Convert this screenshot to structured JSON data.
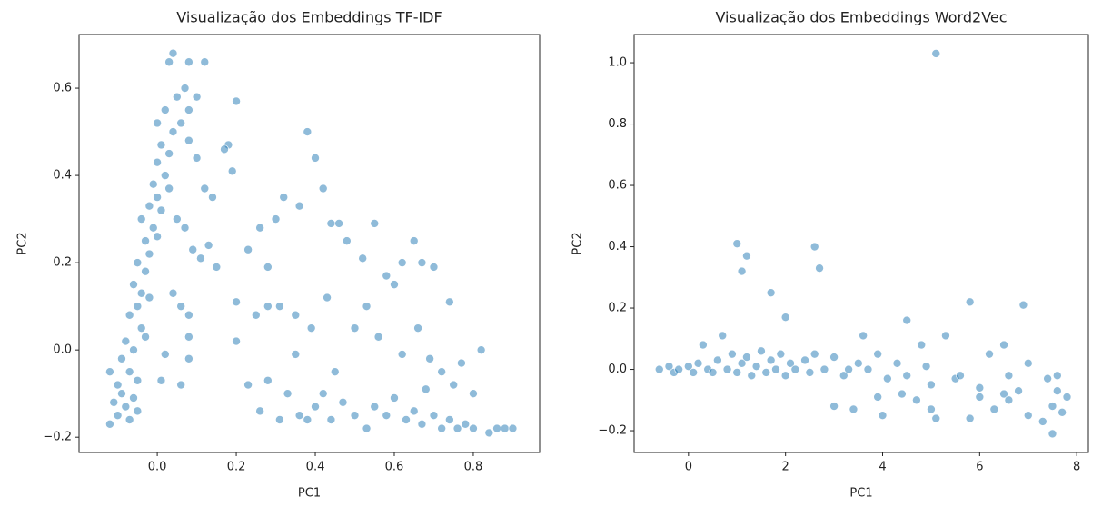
{
  "chart_data": [
    {
      "type": "scatter",
      "title": "Visualização dos Embeddings TF-IDF",
      "x_label": "PC1",
      "y_label": "PC2",
      "color": "#1f77b4",
      "xlim": [
        -0.198,
        0.968
      ],
      "ylim": [
        -0.235,
        0.723
      ],
      "xticks": [
        {
          "value": 0.0,
          "label": "0.0"
        },
        {
          "value": 0.2,
          "label": "0.2"
        },
        {
          "value": 0.4,
          "label": "0.4"
        },
        {
          "value": 0.6,
          "label": "0.6"
        },
        {
          "value": 0.8,
          "label": "0.8"
        }
      ],
      "yticks": [
        {
          "value": -0.2,
          "label": "−0.2"
        },
        {
          "value": 0.0,
          "label": "0.0"
        },
        {
          "value": 0.2,
          "label": "0.2"
        },
        {
          "value": 0.4,
          "label": "0.4"
        },
        {
          "value": 0.6,
          "label": "0.6"
        }
      ],
      "x": [
        -0.12,
        -0.11,
        -0.1,
        -0.09,
        -0.12,
        -0.08,
        -0.07,
        -0.1,
        -0.06,
        -0.09,
        -0.07,
        -0.05,
        -0.08,
        -0.06,
        -0.05,
        -0.04,
        -0.07,
        -0.05,
        -0.03,
        -0.04,
        -0.06,
        -0.03,
        -0.02,
        -0.05,
        -0.02,
        -0.03,
        -0.01,
        -0.04,
        0.0,
        -0.02,
        0.0,
        -0.01,
        0.01,
        0.02,
        0.0,
        0.03,
        0.01,
        0.03,
        0.0,
        0.04,
        0.02,
        0.05,
        0.04,
        0.03,
        0.07,
        0.08,
        0.06,
        0.08,
        0.1,
        0.12,
        0.08,
        0.2,
        0.18,
        0.17,
        0.19,
        0.1,
        0.12,
        0.14,
        0.05,
        0.07,
        0.09,
        0.11,
        0.13,
        0.15,
        0.04,
        0.06,
        0.08,
        0.02,
        0.08,
        0.01,
        0.06,
        0.08,
        0.23,
        0.26,
        0.28,
        0.3,
        0.32,
        0.36,
        0.38,
        0.4,
        0.42,
        0.44,
        0.46,
        0.48,
        0.52,
        0.55,
        0.58,
        0.6,
        0.62,
        0.65,
        0.67,
        0.7,
        0.74,
        0.2,
        0.25,
        0.28,
        0.31,
        0.35,
        0.39,
        0.43,
        0.5,
        0.53,
        0.56,
        0.62,
        0.66,
        0.69,
        0.2,
        0.35,
        0.45,
        0.23,
        0.26,
        0.28,
        0.31,
        0.33,
        0.36,
        0.38,
        0.4,
        0.42,
        0.44,
        0.47,
        0.5,
        0.53,
        0.55,
        0.58,
        0.6,
        0.63,
        0.65,
        0.67,
        0.7,
        0.72,
        0.74,
        0.76,
        0.78,
        0.8,
        0.82,
        0.84,
        0.86,
        0.88,
        0.9,
        0.72,
        0.75,
        0.8,
        0.68,
        0.77
      ],
      "values": [
        -0.17,
        -0.12,
        -0.15,
        -0.1,
        -0.05,
        -0.13,
        -0.16,
        -0.08,
        -0.11,
        -0.02,
        -0.05,
        -0.14,
        0.02,
        0.0,
        -0.07,
        0.05,
        0.08,
        0.1,
        0.03,
        0.13,
        0.15,
        0.18,
        0.12,
        0.2,
        0.22,
        0.25,
        0.28,
        0.3,
        0.26,
        0.33,
        0.35,
        0.38,
        0.32,
        0.4,
        0.43,
        0.37,
        0.47,
        0.45,
        0.52,
        0.5,
        0.55,
        0.58,
        0.68,
        0.66,
        0.6,
        0.55,
        0.52,
        0.48,
        0.58,
        0.66,
        0.66,
        0.57,
        0.47,
        0.46,
        0.41,
        0.44,
        0.37,
        0.35,
        0.3,
        0.28,
        0.23,
        0.21,
        0.24,
        0.19,
        0.13,
        0.1,
        0.08,
        -0.01,
        0.03,
        -0.07,
        -0.08,
        -0.02,
        0.23,
        0.28,
        0.19,
        0.3,
        0.35,
        0.33,
        0.5,
        0.44,
        0.37,
        0.29,
        0.29,
        0.25,
        0.21,
        0.29,
        0.17,
        0.15,
        0.2,
        0.25,
        0.2,
        0.19,
        0.11,
        0.11,
        0.08,
        0.1,
        0.1,
        0.08,
        0.05,
        0.12,
        0.05,
        0.1,
        0.03,
        -0.01,
        0.05,
        -0.02,
        0.02,
        -0.01,
        -0.05,
        -0.08,
        -0.14,
        -0.07,
        -0.16,
        -0.1,
        -0.15,
        -0.16,
        -0.13,
        -0.1,
        -0.16,
        -0.12,
        -0.15,
        -0.18,
        -0.13,
        -0.15,
        -0.11,
        -0.16,
        -0.14,
        -0.17,
        -0.15,
        -0.18,
        -0.16,
        -0.18,
        -0.17,
        -0.18,
        0.0,
        -0.19,
        -0.18,
        -0.18,
        -0.18,
        -0.05,
        -0.08,
        -0.1,
        -0.09,
        -0.03
      ]
    },
    {
      "type": "scatter",
      "title": "Visualização dos Embeddings Word2Vec",
      "x_label": "PC1",
      "y_label": "PC2",
      "color": "#1f77b4",
      "xlim": [
        -1.12,
        8.24
      ],
      "ylim": [
        -0.271,
        1.092
      ],
      "xticks": [
        0,
        2,
        4,
        6,
        8
      ],
      "yticks": [
        {
          "value": -0.2,
          "label": "−0.2"
        },
        {
          "value": 0.0,
          "label": "0.0"
        },
        {
          "value": 0.2,
          "label": "0.2"
        },
        {
          "value": 0.4,
          "label": "0.4"
        },
        {
          "value": 0.6,
          "label": "0.6"
        },
        {
          "value": 0.8,
          "label": "0.8"
        },
        {
          "value": 1.0,
          "label": "1.0"
        }
      ],
      "x": [
        -0.6,
        -0.4,
        -0.3,
        -0.2,
        0.0,
        0.1,
        0.2,
        0.4,
        0.5,
        0.6,
        0.8,
        0.9,
        1.0,
        1.1,
        1.2,
        1.3,
        1.4,
        1.5,
        1.6,
        1.7,
        1.8,
        1.9,
        2.0,
        2.1,
        2.2,
        2.4,
        2.5,
        2.6,
        2.8,
        3.0,
        3.2,
        3.3,
        3.5,
        3.7,
        3.9,
        4.1,
        4.3,
        4.5,
        0.7,
        0.3,
        1.0,
        1.2,
        1.1,
        1.7,
        2.0,
        2.6,
        2.7,
        5.1,
        5.8,
        6.9,
        4.5,
        3.6,
        5.3,
        4.8,
        6.5,
        6.2,
        3.0,
        3.4,
        3.9,
        4.0,
        4.4,
        4.7,
        5.0,
        5.1,
        5.0,
        5.5,
        5.8,
        6.0,
        6.0,
        6.3,
        6.5,
        6.6,
        6.8,
        7.0,
        7.0,
        7.3,
        7.4,
        7.5,
        7.5,
        7.6,
        7.7,
        7.8,
        7.6,
        4.9,
        5.6,
        6.6
      ],
      "values": [
        0.0,
        0.01,
        -0.01,
        0.0,
        0.01,
        -0.01,
        0.02,
        0.0,
        -0.01,
        0.03,
        0.0,
        0.05,
        -0.01,
        0.02,
        0.04,
        -0.02,
        0.01,
        0.06,
        -0.01,
        0.03,
        0.0,
        0.05,
        -0.02,
        0.02,
        0.0,
        0.03,
        -0.01,
        0.05,
        0.0,
        0.04,
        -0.02,
        0.0,
        0.02,
        0.0,
        0.05,
        -0.03,
        0.02,
        -0.02,
        0.11,
        0.08,
        0.41,
        0.37,
        0.32,
        0.25,
        0.17,
        0.4,
        0.33,
        1.03,
        0.22,
        0.21,
        0.16,
        0.11,
        0.11,
        0.08,
        0.08,
        0.05,
        -0.12,
        -0.13,
        -0.09,
        -0.15,
        -0.08,
        -0.1,
        -0.13,
        -0.16,
        -0.05,
        -0.03,
        -0.16,
        -0.06,
        -0.09,
        -0.13,
        -0.08,
        -0.1,
        -0.07,
        -0.15,
        0.02,
        -0.17,
        -0.03,
        -0.21,
        -0.12,
        -0.07,
        -0.14,
        -0.09,
        -0.02,
        0.01,
        -0.02,
        -0.02
      ]
    }
  ]
}
